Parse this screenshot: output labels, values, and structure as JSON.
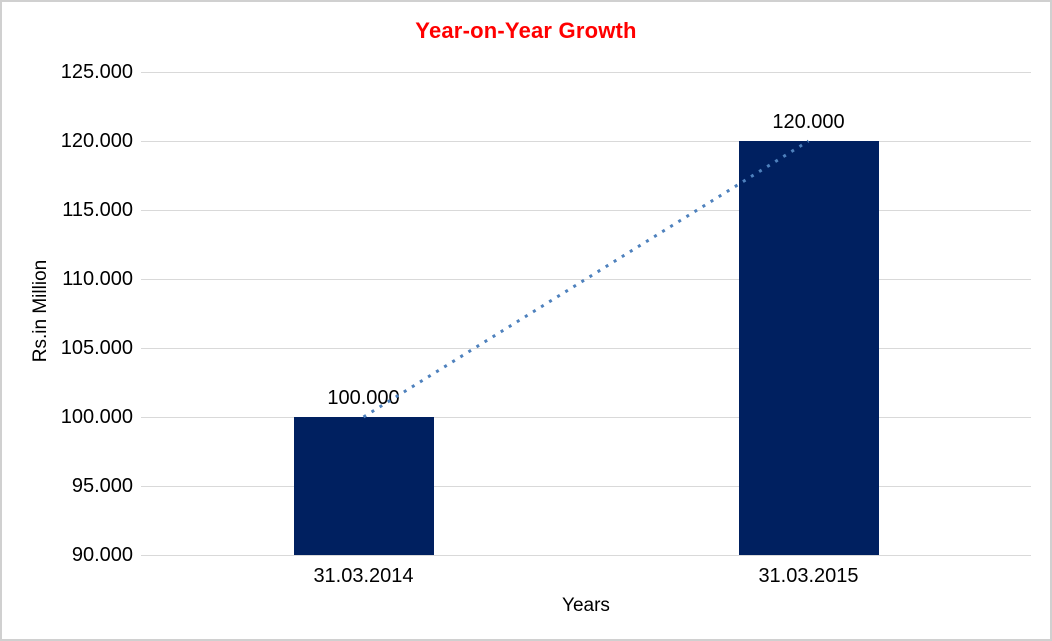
{
  "chart_data": {
    "type": "bar",
    "title": "Year-on-Year Growth",
    "title_color": "#ff0000",
    "xlabel": "Years",
    "ylabel": "Rs.in Million",
    "categories": [
      "31.03.2014",
      "31.03.2015"
    ],
    "values": [
      100000,
      120000
    ],
    "value_labels": [
      "100.000",
      "120.000"
    ],
    "ylim": [
      90000,
      125000
    ],
    "ytick_step": 5000,
    "ytick_labels": [
      "90.000",
      "95.000",
      "100.000",
      "105.000",
      "110.000",
      "115.000",
      "120.000",
      "125.000"
    ],
    "grid": true,
    "legend": "none",
    "bar_color": "#002060",
    "gridline_color": "#d9d9d9",
    "trendline": {
      "style": "dotted",
      "color": "#4e81bd",
      "from": {
        "category": "31.03.2014",
        "value": 100000
      },
      "to": {
        "category": "31.03.2015",
        "value": 120000
      }
    }
  }
}
